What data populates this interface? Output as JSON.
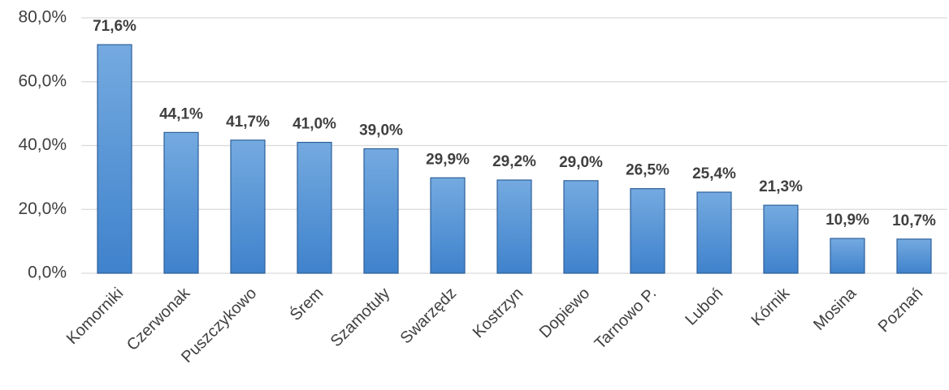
{
  "chart_data": {
    "type": "bar",
    "categories": [
      "Komorniki",
      "Czerwonak",
      "Puszczykowo",
      "Śrem",
      "Szamotuły",
      "Swarzędz",
      "Kostrzyn",
      "Dopiewo",
      "Tarnowo P.",
      "Luboń",
      "Kórnik",
      "Mosina",
      "Poznań"
    ],
    "values": [
      71.6,
      44.1,
      41.7,
      41.0,
      39.0,
      29.9,
      29.2,
      29.0,
      26.5,
      25.4,
      21.3,
      10.9,
      10.7
    ],
    "value_labels": [
      "71,6%",
      "44,1%",
      "41,7%",
      "41,0%",
      "39,0%",
      "29,9%",
      "29,2%",
      "29,0%",
      "26,5%",
      "25,4%",
      "21,3%",
      "10,9%",
      "10,7%"
    ],
    "color": "#5b9bd5",
    "ylim": [
      0,
      80
    ],
    "yticks": [
      {
        "value": 0,
        "label": "0,0%"
      },
      {
        "value": 20,
        "label": "20,0%"
      },
      {
        "value": 40,
        "label": "40,0%"
      },
      {
        "value": 60,
        "label": "60,0%"
      },
      {
        "value": 80,
        "label": "80,0%"
      }
    ],
    "grid": true
  }
}
